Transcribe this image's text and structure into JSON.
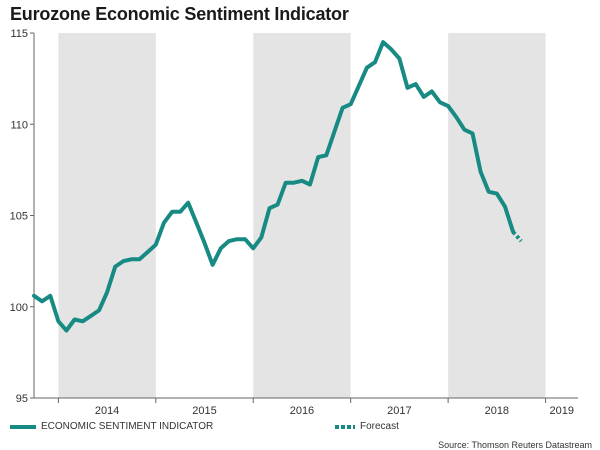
{
  "chart_data": {
    "type": "line",
    "title": "Eurozone Economic Sentiment Indicator",
    "xlabel": "",
    "ylabel": "",
    "ylim": [
      95,
      115
    ],
    "yticks": [
      95,
      100,
      105,
      110,
      115
    ],
    "xlim": [
      2013.75,
      2019.333
    ],
    "year_labels": [
      {
        "year": 2014,
        "label": "2014"
      },
      {
        "year": 2015,
        "label": "2015"
      },
      {
        "year": 2016,
        "label": "2016"
      },
      {
        "year": 2017,
        "label": "2017"
      },
      {
        "year": 2018,
        "label": "2018"
      },
      {
        "year": 2019,
        "label": "2019"
      }
    ],
    "shaded_years": [
      2014,
      2016,
      2018
    ],
    "grid": false,
    "legend_position": "bottom",
    "series": [
      {
        "name": "ECONOMIC SENTIMENT INDICATOR",
        "style": "solid",
        "points": [
          [
            2013.75,
            100.6
          ],
          [
            2013.833,
            100.3
          ],
          [
            2013.917,
            100.6
          ],
          [
            2014.0,
            99.2
          ],
          [
            2014.083,
            98.7
          ],
          [
            2014.167,
            99.3
          ],
          [
            2014.25,
            99.2
          ],
          [
            2014.333,
            99.5
          ],
          [
            2014.417,
            99.8
          ],
          [
            2014.5,
            100.8
          ],
          [
            2014.583,
            102.2
          ],
          [
            2014.667,
            102.5
          ],
          [
            2014.75,
            102.6
          ],
          [
            2014.833,
            102.6
          ],
          [
            2014.917,
            103.0
          ],
          [
            2015.0,
            103.4
          ],
          [
            2015.083,
            104.6
          ],
          [
            2015.167,
            105.2
          ],
          [
            2015.25,
            105.2
          ],
          [
            2015.333,
            105.7
          ],
          [
            2015.417,
            104.6
          ],
          [
            2015.5,
            103.5
          ],
          [
            2015.583,
            102.3
          ],
          [
            2015.667,
            103.2
          ],
          [
            2015.75,
            103.6
          ],
          [
            2015.833,
            103.7
          ],
          [
            2015.917,
            103.7
          ],
          [
            2016.0,
            103.2
          ],
          [
            2016.083,
            103.8
          ],
          [
            2016.167,
            105.4
          ],
          [
            2016.25,
            105.6
          ],
          [
            2016.333,
            106.8
          ],
          [
            2016.417,
            106.8
          ],
          [
            2016.5,
            106.9
          ],
          [
            2016.583,
            106.7
          ],
          [
            2016.667,
            108.2
          ],
          [
            2016.75,
            108.3
          ],
          [
            2016.833,
            109.6
          ],
          [
            2016.917,
            110.9
          ],
          [
            2017.0,
            111.1
          ],
          [
            2017.083,
            112.1
          ],
          [
            2017.167,
            113.1
          ],
          [
            2017.25,
            113.4
          ],
          [
            2017.333,
            114.5
          ],
          [
            2017.417,
            114.1
          ],
          [
            2017.5,
            113.6
          ],
          [
            2017.583,
            112.0
          ],
          [
            2017.667,
            112.2
          ],
          [
            2017.75,
            111.5
          ],
          [
            2017.833,
            111.8
          ],
          [
            2017.917,
            111.2
          ],
          [
            2018.0,
            111.0
          ],
          [
            2018.083,
            110.4
          ],
          [
            2018.167,
            109.7
          ],
          [
            2018.25,
            109.5
          ],
          [
            2018.333,
            107.4
          ],
          [
            2018.417,
            106.3
          ],
          [
            2018.5,
            106.2
          ],
          [
            2018.583,
            105.5
          ],
          [
            2018.667,
            104.1
          ]
        ]
      },
      {
        "name": "Forecast",
        "style": "dotted",
        "points": [
          [
            2018.667,
            104.1
          ],
          [
            2018.75,
            103.6
          ]
        ]
      }
    ],
    "source": "Source: Thomson Reuters Datastream"
  },
  "colors": {
    "line": "#178a84",
    "shade": "#e4e4e4",
    "axis": "#666666",
    "text": "#333333"
  }
}
